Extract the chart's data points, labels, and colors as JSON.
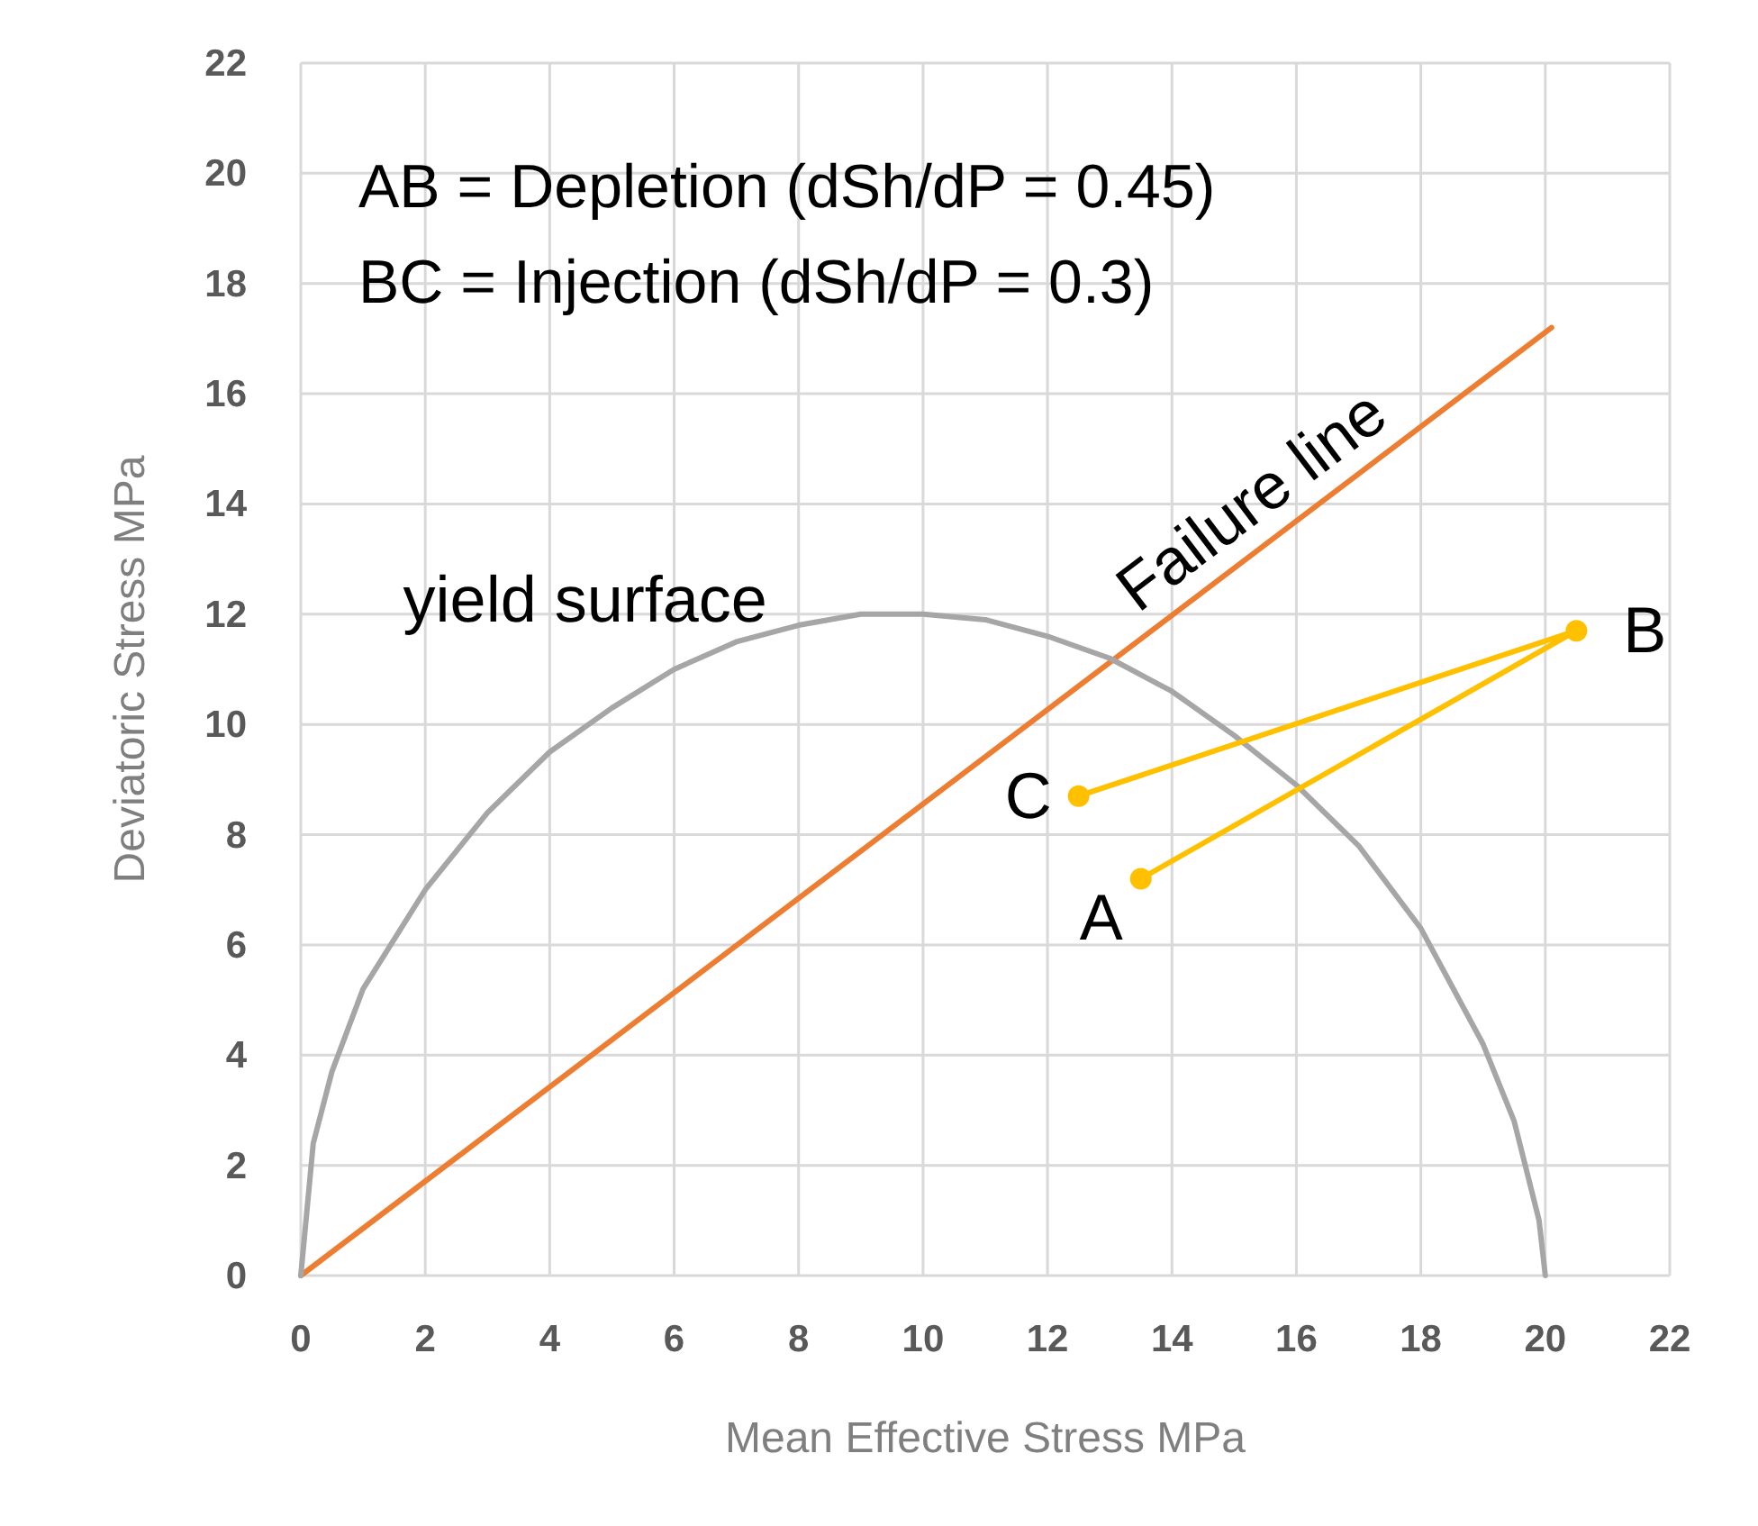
{
  "chart_data": {
    "type": "line",
    "xlabel": "Mean Effective Stress MPa",
    "ylabel": "Deviatoric Stress MPa",
    "xlim": [
      0,
      22
    ],
    "ylim": [
      0,
      22
    ],
    "xticks": [
      0,
      2,
      4,
      6,
      8,
      10,
      12,
      14,
      16,
      18,
      20,
      22
    ],
    "yticks": [
      0,
      2,
      4,
      6,
      8,
      10,
      12,
      14,
      16,
      18,
      20,
      22
    ],
    "grid": true,
    "annotations": [
      "AB = Depletion (dSh/dP = 0.45)",
      "BC = Injection (dSh/dP = 0.3)",
      {
        "text": "A",
        "x": 13.5,
        "y": 7.2
      },
      {
        "text": "B",
        "x": 20.5,
        "y": 11.7
      },
      {
        "text": "C",
        "x": 12.5,
        "y": 8.7
      }
    ],
    "series": [
      {
        "name": "Failure line",
        "color": "#ed7d31",
        "marker": "none",
        "x": [
          0,
          20.1
        ],
        "values": [
          0,
          17.2
        ]
      },
      {
        "name": "yield surface",
        "color": "#a6a6a6",
        "marker": "none",
        "x": [
          0,
          0.2,
          0.5,
          1,
          2,
          3,
          4,
          5,
          6,
          7,
          8,
          9,
          10,
          11,
          12,
          13,
          14,
          15,
          16,
          17,
          18,
          19,
          19.5,
          19.9,
          20
        ],
        "values": [
          0,
          2.4,
          3.7,
          5.2,
          7.0,
          8.4,
          9.5,
          10.3,
          11.0,
          11.5,
          11.8,
          12.0,
          12.0,
          11.9,
          11.6,
          11.2,
          10.6,
          9.8,
          8.9,
          7.8,
          6.3,
          4.2,
          2.8,
          1.0,
          0
        ]
      },
      {
        "color": "#ffc000",
        "marker": "circle",
        "x": [
          13.5,
          20.5,
          12.5
        ],
        "values": [
          7.2,
          11.7,
          8.7
        ]
      }
    ]
  }
}
